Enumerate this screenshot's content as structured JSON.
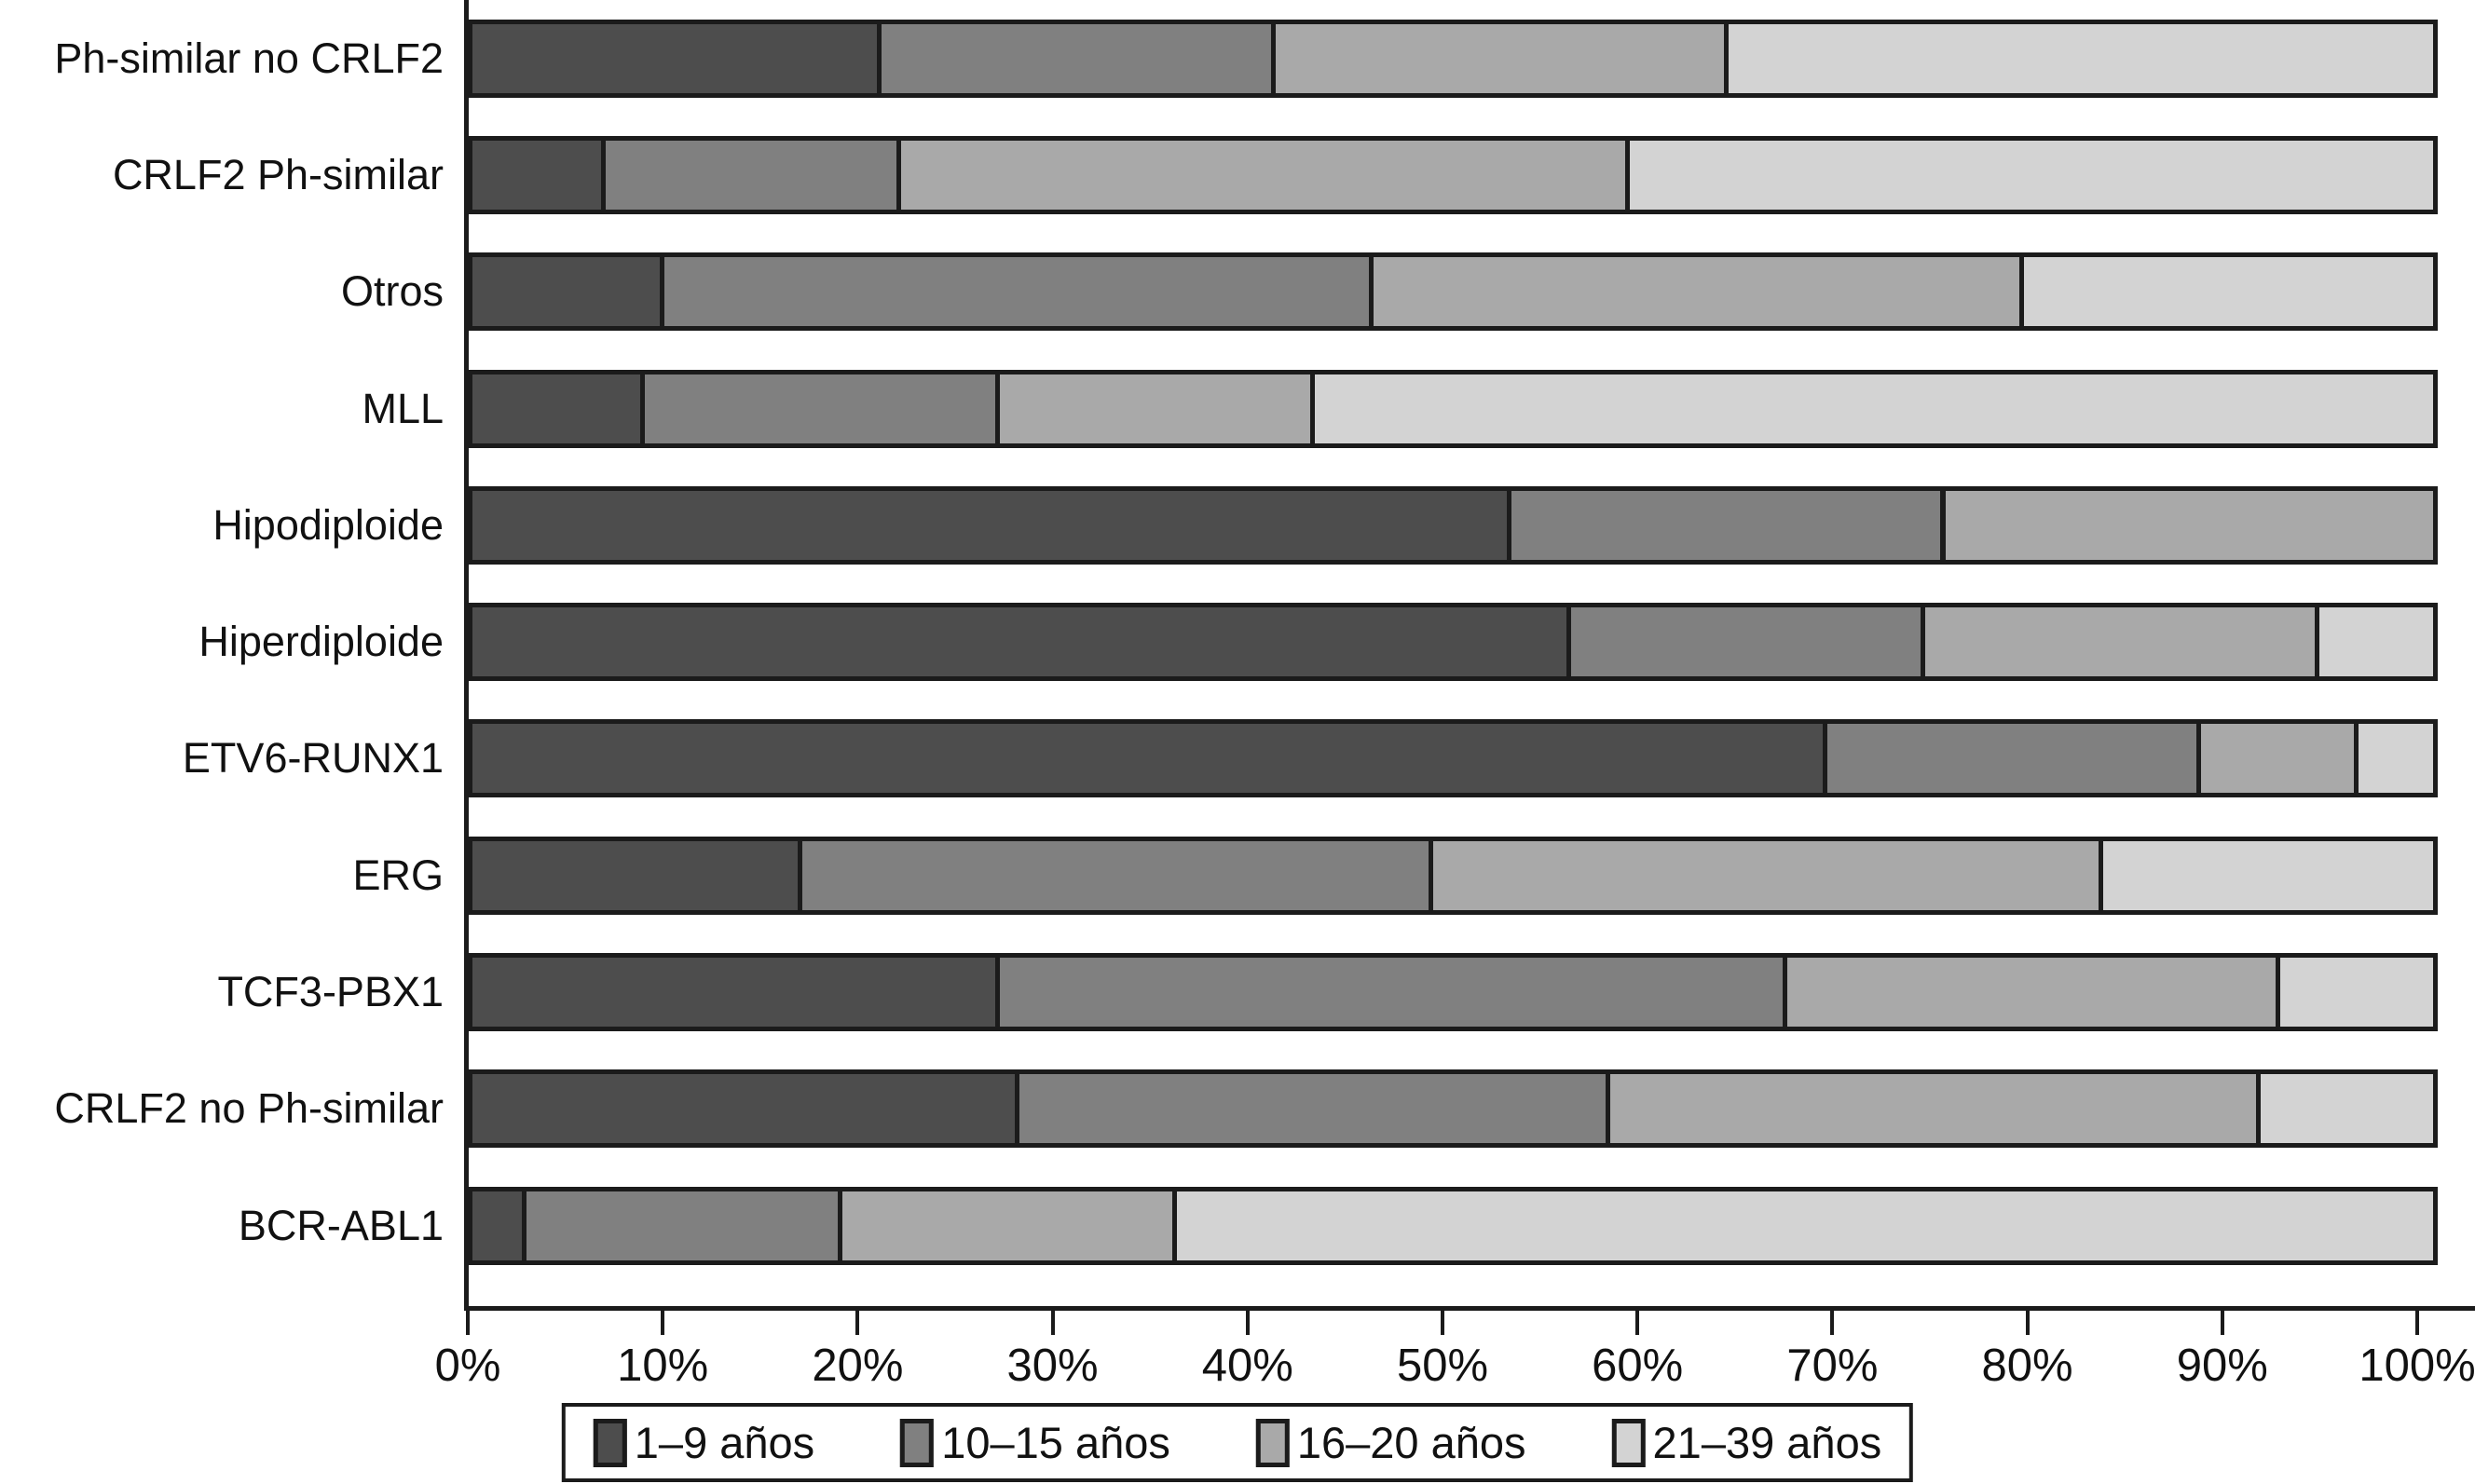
{
  "chart_data": {
    "type": "bar",
    "orientation": "horizontal",
    "stacked": true,
    "unit": "percent",
    "title": "",
    "xlabel": "",
    "ylabel": "",
    "grid": false,
    "legend_position": "bottom",
    "categories": [
      "Ph-similar no CRLF2",
      "CRLF2 Ph-similar",
      "Otros",
      "MLL",
      "Hipodiploide",
      "Hiperdiploide",
      "ETV6-RUNX1",
      "ERG",
      "TCF3-PBX1",
      "CRLF2 no Ph-similar",
      "BCR-ABL1"
    ],
    "series": [
      {
        "name": "1–9 años",
        "color": "#4d4d4d",
        "values": [
          21,
          7,
          10,
          9,
          53,
          56,
          69,
          17,
          27,
          28,
          3
        ]
      },
      {
        "name": "10–15 años",
        "color": "#808080",
        "values": [
          20,
          15,
          36,
          18,
          22,
          18,
          19,
          32,
          40,
          30,
          16
        ]
      },
      {
        "name": "16–20 años",
        "color": "#a9a9a9",
        "values": [
          23,
          37,
          33,
          16,
          25,
          20,
          8,
          34,
          25,
          33,
          17
        ]
      },
      {
        "name": "21–39 años",
        "color": "#d3d3d3",
        "values": [
          36,
          41,
          21,
          57,
          0,
          6,
          4,
          17,
          8,
          9,
          64
        ]
      }
    ],
    "x_axis": {
      "min": 0,
      "max": 100,
      "tick_labels": [
        "0%",
        "10%",
        "20%",
        "30%",
        "40%",
        "50%",
        "60%",
        "70%",
        "80%",
        "90%",
        "100%"
      ]
    }
  }
}
